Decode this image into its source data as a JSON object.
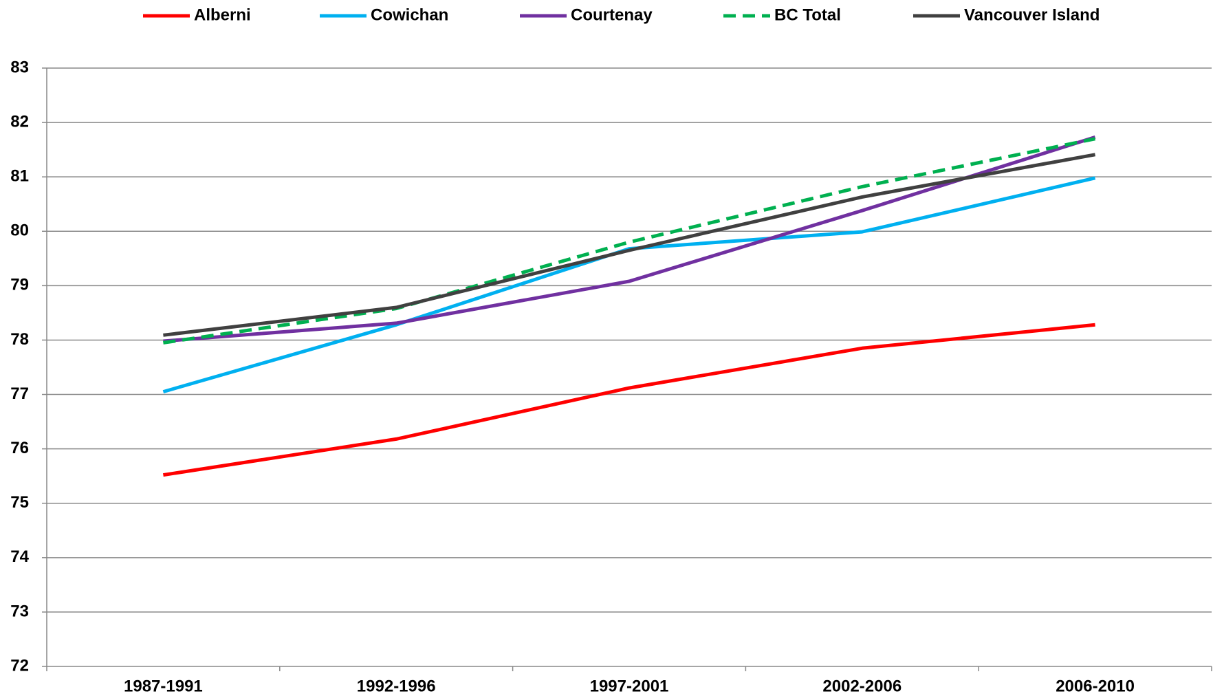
{
  "chart_data": {
    "type": "line",
    "categories": [
      "1987-1991",
      "1992-1996",
      "1997-2001",
      "2002-2006",
      "2006-2010"
    ],
    "series": [
      {
        "name": "Alberni",
        "color": "#ff0000",
        "dash": false,
        "values": [
          75.52,
          76.18,
          77.12,
          77.85,
          78.28
        ]
      },
      {
        "name": "Cowichan",
        "color": "#00b0f0",
        "dash": false,
        "values": [
          77.05,
          78.28,
          79.68,
          79.99,
          80.98
        ]
      },
      {
        "name": "Courtenay",
        "color": "#7030a0",
        "dash": false,
        "values": [
          77.98,
          78.31,
          79.08,
          80.38,
          81.73
        ]
      },
      {
        "name": "BC Total",
        "color": "#00b050",
        "dash": true,
        "values": [
          77.95,
          78.58,
          79.8,
          80.82,
          81.7
        ]
      },
      {
        "name": "Vancouver Island",
        "color": "#404040",
        "dash": false,
        "values": [
          78.09,
          78.6,
          79.65,
          80.63,
          81.41
        ]
      }
    ],
    "ylim": [
      72,
      83
    ],
    "yticks": [
      72,
      73,
      74,
      75,
      76,
      77,
      78,
      79,
      80,
      81,
      82,
      83
    ],
    "grid": true,
    "legend": "top"
  }
}
